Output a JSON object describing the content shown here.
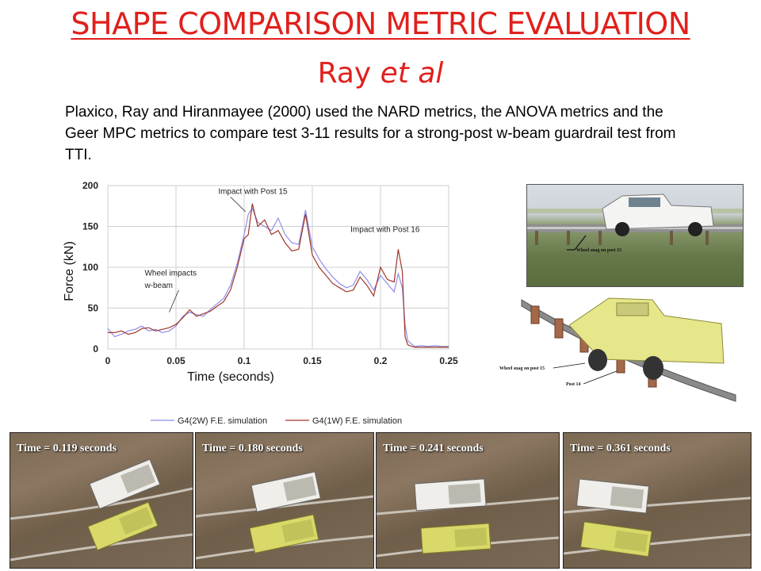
{
  "slide": {
    "title": "SHAPE COMPARISON METRIC EVALUATION",
    "subtitle_main": "Ray ",
    "subtitle_italic": "et al",
    "body": "Plaxico, Ray and Hiranmayee (2000) used the NARD metrics, the ANOVA metrics and the Geer MPC metrics to compare test 3-11 results for a strong-post w-beam guardrail test from TTI."
  },
  "photo": {
    "caption": "Wheel snag on post 15"
  },
  "fe_model": {
    "label_wheel": "Wheel snag on post 15",
    "label_post": "Post 14"
  },
  "frames": [
    {
      "label": "Time = 0.119 seconds"
    },
    {
      "label": "Time = 0.180 seconds"
    },
    {
      "label": "Time = 0.241 seconds"
    },
    {
      "label": "Time = 0.361 seconds"
    }
  ],
  "colors": {
    "title": "#e0201c",
    "series_2w": "#8d8ee8",
    "series_1w": "#a0362a"
  },
  "chart_data": {
    "type": "line",
    "title": "",
    "xlabel": "Time (seconds)",
    "ylabel": "Force (kN)",
    "xlim": [
      0,
      0.25
    ],
    "ylim": [
      0,
      200
    ],
    "xticks": [
      0,
      0.05,
      0.1,
      0.15,
      0.2,
      0.25
    ],
    "xtick_labels": [
      "0",
      "0.05",
      "0.1",
      "0.15",
      "0.2",
      "0.25"
    ],
    "yticks": [
      0,
      50,
      100,
      150,
      200
    ],
    "ytick_labels": [
      "0",
      "50",
      "100",
      "150",
      "200"
    ],
    "grid": true,
    "legend": "bottom",
    "annotations": [
      {
        "text": "Impact with Post 15",
        "x": 0.081,
        "y": 190
      },
      {
        "text": "Impact with Post 16",
        "x": 0.178,
        "y": 143
      },
      {
        "text": "Wheel impacts",
        "x": 0.027,
        "y": 90
      },
      {
        "text": "w-beam",
        "x": 0.027,
        "y": 75
      }
    ],
    "series": [
      {
        "name": "G4(2W) F.E. simulation",
        "x": [
          0,
          0.005,
          0.01,
          0.015,
          0.02,
          0.025,
          0.03,
          0.035,
          0.04,
          0.045,
          0.05,
          0.055,
          0.06,
          0.065,
          0.07,
          0.075,
          0.08,
          0.085,
          0.09,
          0.095,
          0.1,
          0.103,
          0.106,
          0.11,
          0.115,
          0.12,
          0.125,
          0.13,
          0.135,
          0.14,
          0.145,
          0.15,
          0.155,
          0.16,
          0.165,
          0.17,
          0.175,
          0.18,
          0.185,
          0.19,
          0.195,
          0.2,
          0.205,
          0.21,
          0.213,
          0.216,
          0.218,
          0.22,
          0.225,
          0.23,
          0.235,
          0.24,
          0.245,
          0.25
        ],
        "y": [
          25,
          15,
          18,
          22,
          24,
          28,
          22,
          24,
          20,
          22,
          28,
          40,
          45,
          42,
          40,
          48,
          55,
          62,
          78,
          105,
          140,
          165,
          172,
          155,
          150,
          145,
          160,
          140,
          130,
          128,
          170,
          125,
          110,
          98,
          88,
          80,
          75,
          78,
          95,
          85,
          72,
          90,
          80,
          70,
          92,
          75,
          30,
          10,
          3,
          4,
          3,
          4,
          3,
          3
        ]
      },
      {
        "name": "G4(1W) F.E. simulation",
        "x": [
          0,
          0.005,
          0.01,
          0.015,
          0.02,
          0.025,
          0.03,
          0.035,
          0.04,
          0.045,
          0.05,
          0.055,
          0.06,
          0.065,
          0.07,
          0.075,
          0.08,
          0.085,
          0.09,
          0.095,
          0.1,
          0.103,
          0.106,
          0.11,
          0.115,
          0.12,
          0.125,
          0.13,
          0.135,
          0.14,
          0.145,
          0.15,
          0.155,
          0.16,
          0.165,
          0.17,
          0.175,
          0.18,
          0.185,
          0.19,
          0.195,
          0.2,
          0.205,
          0.21,
          0.213,
          0.216,
          0.218,
          0.22,
          0.225,
          0.23,
          0.235,
          0.24,
          0.245,
          0.25
        ],
        "y": [
          20,
          20,
          22,
          18,
          20,
          25,
          26,
          22,
          24,
          26,
          30,
          38,
          48,
          40,
          43,
          46,
          52,
          58,
          72,
          100,
          135,
          140,
          178,
          150,
          158,
          140,
          145,
          130,
          120,
          122,
          165,
          115,
          100,
          90,
          80,
          75,
          70,
          72,
          88,
          78,
          65,
          100,
          85,
          82,
          122,
          95,
          15,
          5,
          2,
          2,
          2,
          2,
          2,
          2
        ]
      }
    ]
  }
}
